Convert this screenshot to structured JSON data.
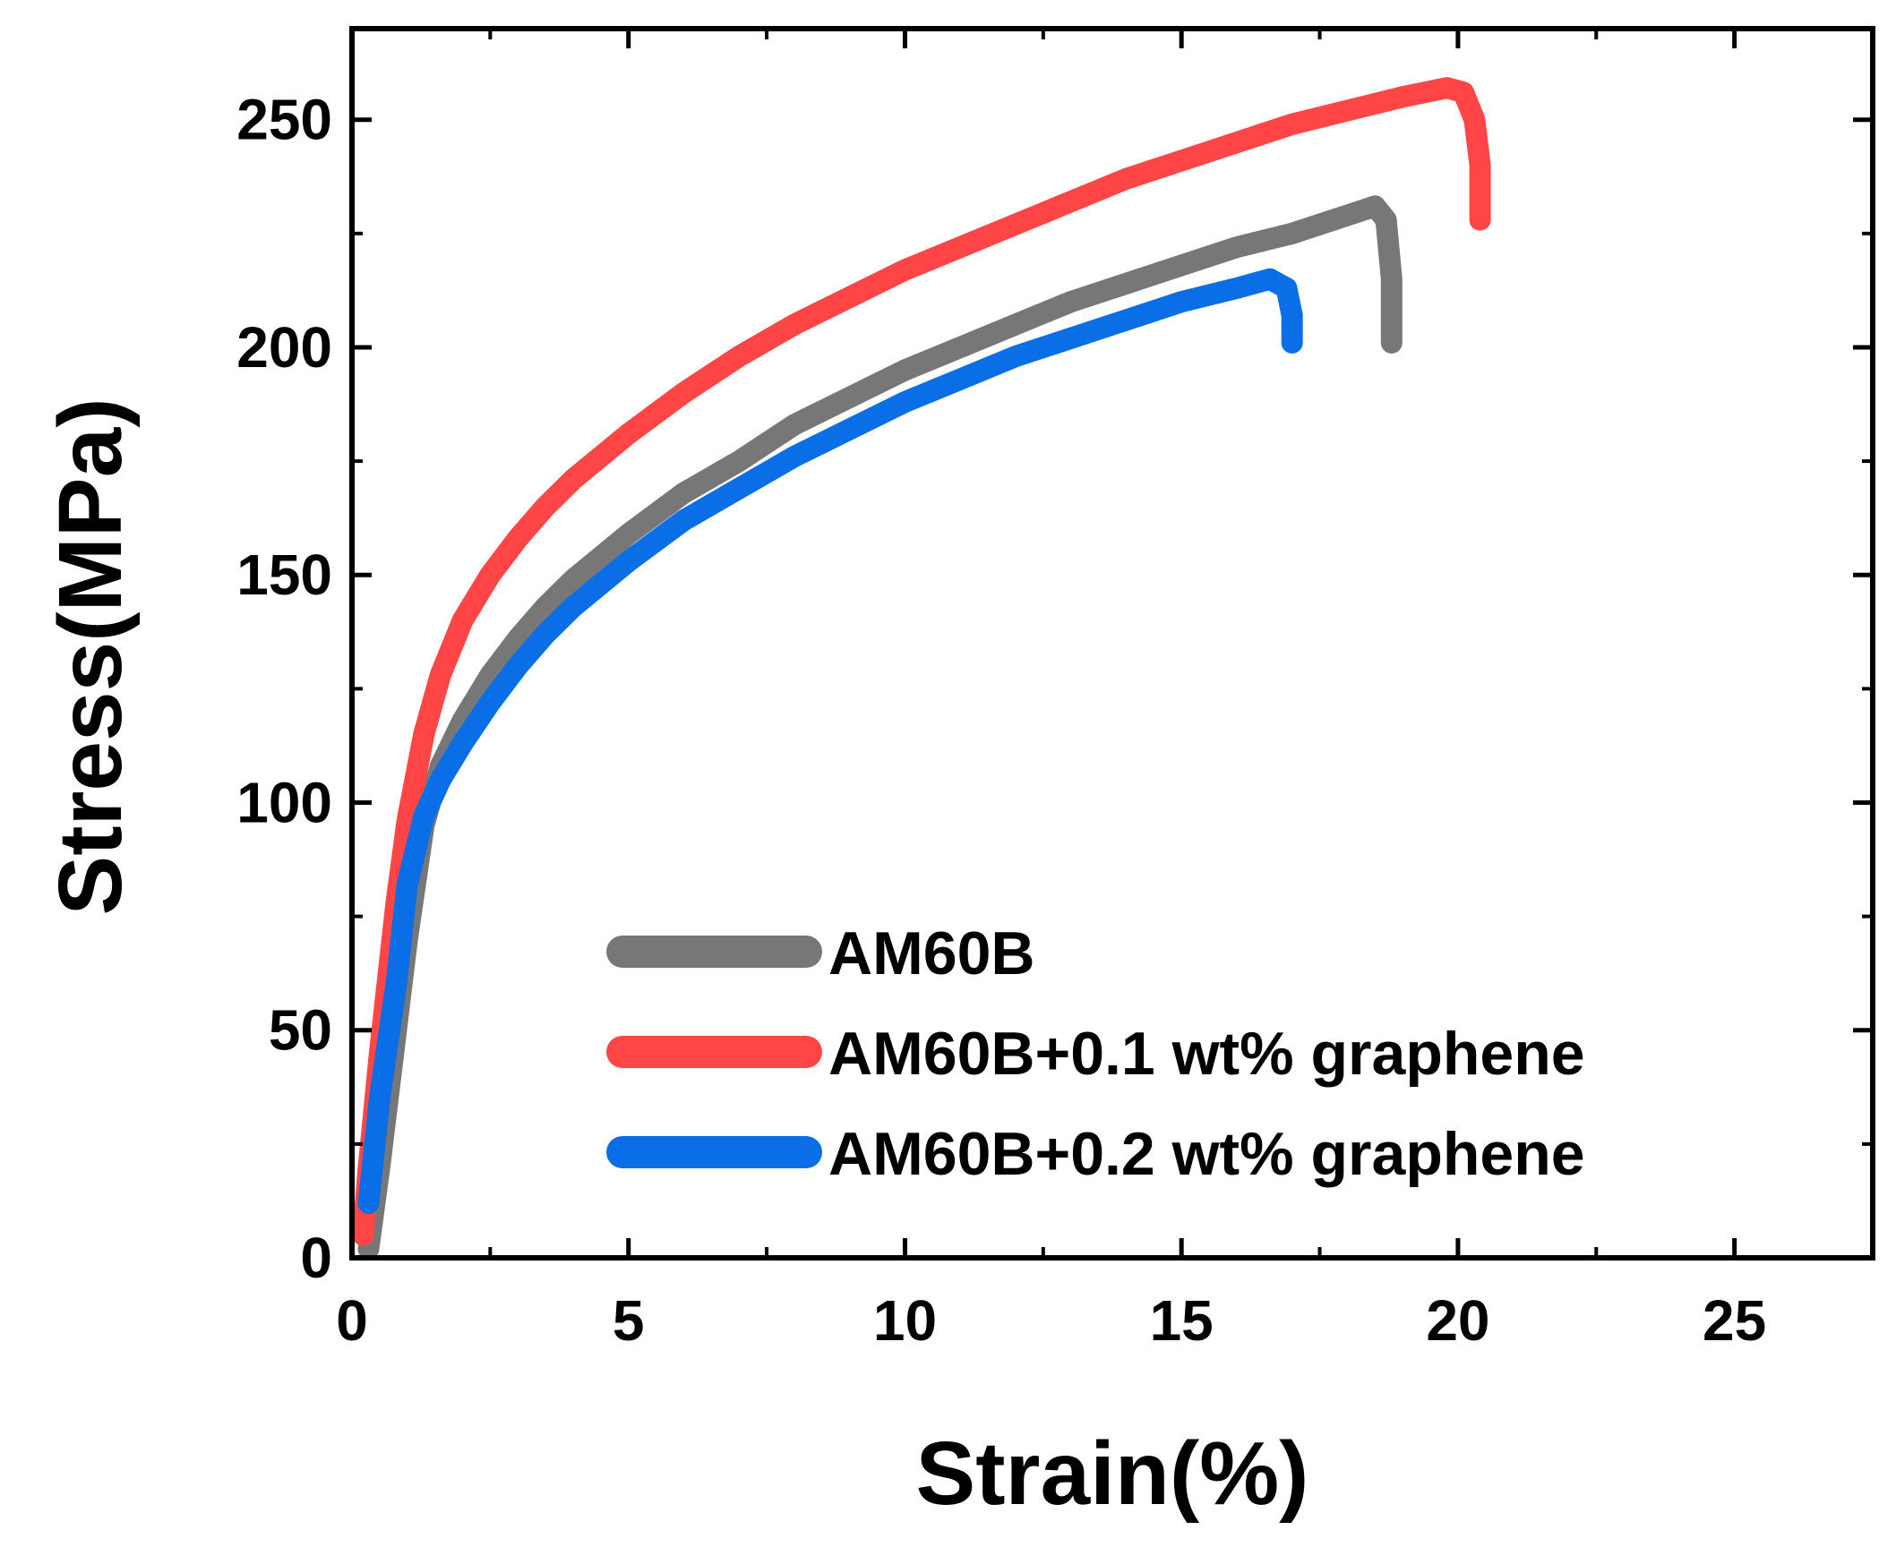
{
  "chart_data": {
    "type": "line",
    "xlabel": "Strain(%)",
    "ylabel": "Stress(MPa)",
    "xlim": [
      0,
      27.5
    ],
    "ylim": [
      0,
      270
    ],
    "xticks": [
      0,
      5,
      10,
      15,
      20,
      25
    ],
    "yticks": [
      0,
      50,
      100,
      150,
      200,
      250
    ],
    "grid": false,
    "legend_position": "bottom-right",
    "series": [
      {
        "name": "AM60B",
        "color": "#777777",
        "points": [
          [
            0.3,
            2
          ],
          [
            0.5,
            20
          ],
          [
            0.8,
            50
          ],
          [
            1.0,
            70
          ],
          [
            1.3,
            95
          ],
          [
            1.6,
            108
          ],
          [
            2.0,
            118
          ],
          [
            2.5,
            128
          ],
          [
            3.0,
            136
          ],
          [
            3.5,
            143
          ],
          [
            4.0,
            149
          ],
          [
            5.0,
            159
          ],
          [
            6.0,
            168
          ],
          [
            7.0,
            175
          ],
          [
            8.0,
            183
          ],
          [
            9.0,
            189
          ],
          [
            10.0,
            195
          ],
          [
            11.0,
            200
          ],
          [
            12.0,
            205
          ],
          [
            13.0,
            210
          ],
          [
            14.0,
            214
          ],
          [
            15.0,
            218
          ],
          [
            16.0,
            222
          ],
          [
            17.0,
            225
          ],
          [
            18.0,
            229
          ],
          [
            18.5,
            231
          ],
          [
            18.7,
            228
          ],
          [
            18.8,
            215
          ],
          [
            18.8,
            201
          ]
        ]
      },
      {
        "name": "AM60B+0.1 wt% graphene",
        "color": "#ff4545",
        "points": [
          [
            0.2,
            5
          ],
          [
            0.3,
            20
          ],
          [
            0.5,
            45
          ],
          [
            0.8,
            78
          ],
          [
            1.0,
            96
          ],
          [
            1.3,
            115
          ],
          [
            1.6,
            128
          ],
          [
            2.0,
            140
          ],
          [
            2.5,
            150
          ],
          [
            3.0,
            158
          ],
          [
            3.5,
            165
          ],
          [
            4.0,
            171
          ],
          [
            5.0,
            181
          ],
          [
            6.0,
            190
          ],
          [
            7.0,
            198
          ],
          [
            8.0,
            205
          ],
          [
            9.0,
            211
          ],
          [
            10.0,
            217
          ],
          [
            11.0,
            222
          ],
          [
            12.0,
            227
          ],
          [
            13.0,
            232
          ],
          [
            14.0,
            237
          ],
          [
            15.0,
            241
          ],
          [
            16.0,
            245
          ],
          [
            17.0,
            249
          ],
          [
            18.0,
            252
          ],
          [
            19.0,
            255
          ],
          [
            19.8,
            257
          ],
          [
            20.1,
            256
          ],
          [
            20.3,
            250
          ],
          [
            20.4,
            240
          ],
          [
            20.4,
            228
          ]
        ]
      },
      {
        "name": "AM60B+0.2 wt% graphene",
        "color": "#0a6ee6",
        "points": [
          [
            0.3,
            12
          ],
          [
            0.5,
            35
          ],
          [
            0.8,
            60
          ],
          [
            1.0,
            82
          ],
          [
            1.3,
            97
          ],
          [
            1.6,
            105
          ],
          [
            2.0,
            113
          ],
          [
            2.5,
            122
          ],
          [
            3.0,
            130
          ],
          [
            3.5,
            137
          ],
          [
            4.0,
            143
          ],
          [
            5.0,
            153
          ],
          [
            6.0,
            162
          ],
          [
            7.0,
            169
          ],
          [
            8.0,
            176
          ],
          [
            9.0,
            182
          ],
          [
            10.0,
            188
          ],
          [
            11.0,
            193
          ],
          [
            12.0,
            198
          ],
          [
            13.0,
            202
          ],
          [
            14.0,
            206
          ],
          [
            15.0,
            210
          ],
          [
            16.0,
            213
          ],
          [
            16.6,
            215
          ],
          [
            16.9,
            213
          ],
          [
            17.0,
            207
          ],
          [
            17.0,
            201
          ]
        ]
      }
    ]
  }
}
